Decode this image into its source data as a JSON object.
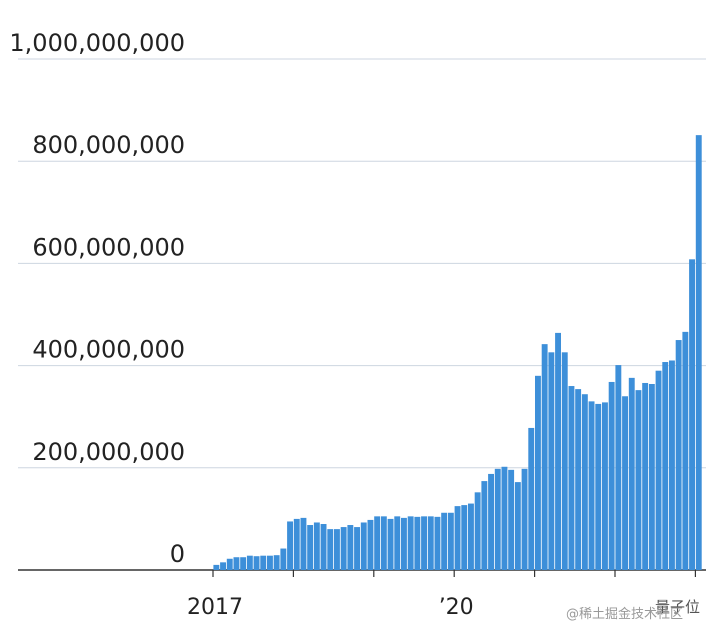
{
  "chart_data": {
    "type": "bar",
    "categories": [
      "2017",
      null,
      null,
      null,
      null,
      null,
      null,
      null,
      null,
      null,
      null,
      null,
      null,
      null,
      null,
      null,
      null,
      null,
      null,
      null,
      null,
      null,
      null,
      null,
      null,
      null,
      null,
      null,
      null,
      null,
      null,
      null,
      null,
      null,
      null,
      null,
      "’20",
      null,
      null,
      null,
      null,
      null,
      null,
      null,
      null,
      null,
      null,
      null,
      null,
      null,
      null,
      null,
      null,
      null,
      null,
      null,
      null,
      null,
      null,
      null,
      null,
      null,
      null,
      null,
      null,
      null,
      null,
      null,
      null,
      null,
      null,
      null,
      null
    ],
    "values": [
      10000000,
      15000000,
      22000000,
      25000000,
      25000000,
      28000000,
      27000000,
      28000000,
      28000000,
      29000000,
      42000000,
      95000000,
      100000000,
      102000000,
      88000000,
      93000000,
      90000000,
      80000000,
      80000000,
      84000000,
      88000000,
      84000000,
      93000000,
      98000000,
      105000000,
      105000000,
      100000000,
      105000000,
      102000000,
      105000000,
      104000000,
      105000000,
      105000000,
      104000000,
      112000000,
      112000000,
      125000000,
      127000000,
      130000000,
      152000000,
      174000000,
      188000000,
      198000000,
      202000000,
      196000000,
      172000000,
      198000000,
      278000000,
      380000000,
      442000000,
      426000000,
      464000000,
      426000000,
      360000000,
      354000000,
      344000000,
      330000000,
      325000000,
      328000000,
      368000000,
      401000000,
      340000000,
      376000000,
      352000000,
      366000000,
      364000000,
      390000000,
      407000000,
      410000000,
      450000000,
      466000000,
      608000000,
      851000000
    ],
    "color": "#3d8fd9",
    "ylim": [
      0,
      1000000000
    ],
    "yticks": [
      0,
      {
        "value": 200000000,
        "label": "200,000,000"
      },
      {
        "value": 400000000,
        "label": "400,000,000"
      },
      {
        "value": 600000000,
        "label": "600,000,000"
      },
      {
        "value": 800000000,
        "label": "800,000,000"
      },
      {
        "value": 1000000000,
        "label": "1,000,000,000"
      }
    ],
    "grid": true,
    "watermark": "@稀土掘金技术社区",
    "source": "量子位"
  }
}
